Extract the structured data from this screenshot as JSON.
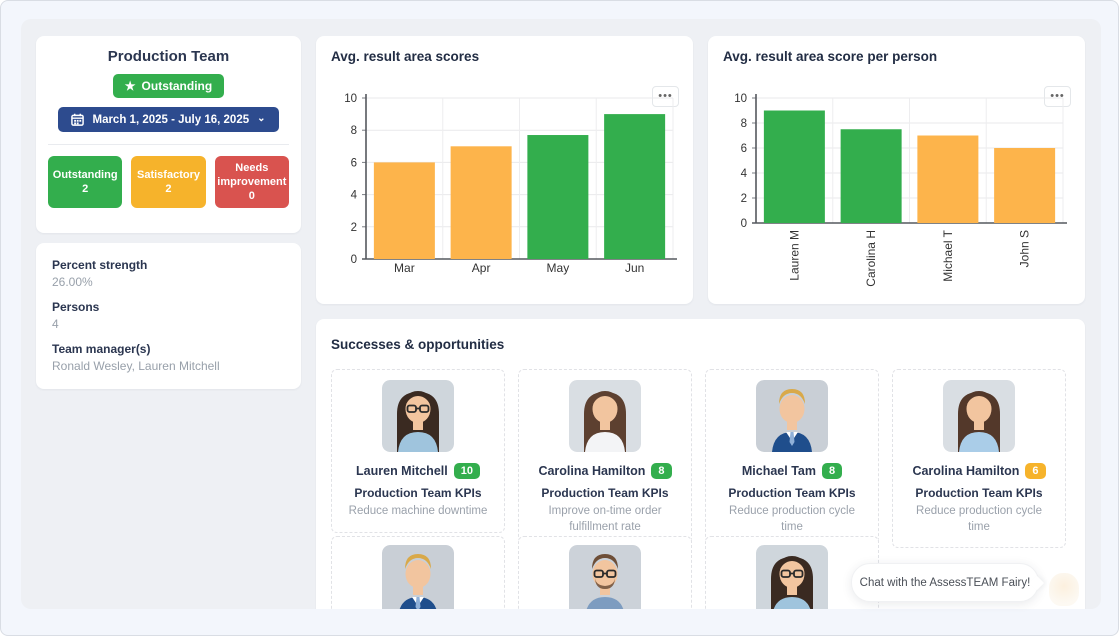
{
  "colors": {
    "green": "#33ae4d",
    "amber": "#f6b32b",
    "red": "#d9534f",
    "bar_orange": "#fdb44b",
    "bar_green": "#33ae4d",
    "date_blue": "#2d4b8e"
  },
  "icons": {
    "star": "★",
    "chevron_down": "⌄",
    "ellipsis": "•••",
    "calendar": "calendar-icon"
  },
  "team_panel": {
    "title": "Production Team",
    "rating_badge": "Outstanding",
    "date_range": "March 1, 2025 - July 16, 2025",
    "stats": [
      {
        "label": "Outstanding",
        "value": "2",
        "color": "#33ae4d"
      },
      {
        "label": "Satisfactory",
        "value": "2",
        "color": "#f6b32b"
      },
      {
        "label": "Needs improvement",
        "value": "0",
        "color": "#d9534f"
      }
    ]
  },
  "info_panel": {
    "fields": [
      {
        "label": "Percent strength",
        "value": "26.00%"
      },
      {
        "label": "Persons",
        "value": "4"
      },
      {
        "label": "Team manager(s)",
        "value": "Ronald Wesley, Lauren Mitchell"
      }
    ]
  },
  "chart_data": [
    {
      "type": "bar",
      "title": "Avg. result area scores",
      "categories": [
        "Mar",
        "Apr",
        "May",
        "Jun"
      ],
      "values": [
        6,
        7,
        7.7,
        9
      ],
      "colors": [
        "#fdb44b",
        "#fdb44b",
        "#33ae4d",
        "#33ae4d"
      ],
      "ylim": [
        0,
        10
      ],
      "yticks": [
        0,
        2,
        4,
        6,
        8,
        10
      ],
      "grid": true,
      "xlabel_rotation": 0,
      "legend": "none"
    },
    {
      "type": "bar",
      "title": "Avg. result area score per person",
      "categories": [
        "Lauren M",
        "Carolina H",
        "Michael T",
        "John S"
      ],
      "values": [
        9,
        7.5,
        7,
        6
      ],
      "colors": [
        "#33ae4d",
        "#33ae4d",
        "#fdb44b",
        "#fdb44b"
      ],
      "ylim": [
        0,
        10
      ],
      "yticks": [
        0,
        2,
        4,
        6,
        8,
        10
      ],
      "grid": true,
      "xlabel_rotation": -90,
      "legend": "none"
    }
  ],
  "successes": {
    "title": "Successes & opportunities",
    "cards": [
      {
        "name": "Lauren Mitchell",
        "score": "10",
        "score_color": "#33ae4d",
        "kpi": "Production Team KPIs",
        "desc": "Reduce machine downtime",
        "avatar": "woman-dark-glasses"
      },
      {
        "name": "Carolina Hamilton",
        "score": "8",
        "score_color": "#33ae4d",
        "kpi": "Production Team KPIs",
        "desc": "Improve on-time order fulfillment rate",
        "avatar": "woman-brown"
      },
      {
        "name": "Michael Tam",
        "score": "8",
        "score_color": "#33ae4d",
        "kpi": "Production Team KPIs",
        "desc": "Reduce production cycle time",
        "avatar": "man-blond-suit"
      },
      {
        "name": "Carolina Hamilton",
        "score": "6",
        "score_color": "#f6b32b",
        "kpi": "Production Team KPIs",
        "desc": "Reduce production cycle time",
        "avatar": "woman-brown-blue"
      }
    ],
    "row2_avatars": [
      "man-blond-suit",
      "man-beard-glasses",
      "woman-dark-glasses"
    ]
  },
  "chat": {
    "label": "Chat with the AssessTEAM Fairy!"
  }
}
